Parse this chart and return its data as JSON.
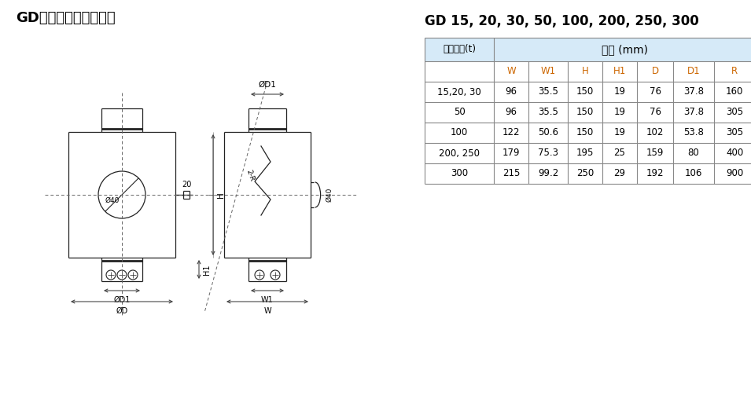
{
  "title": "GD称重传感器安装尺寸",
  "table_title": "GD 15, 20, 30, 50, 100, 200, 250, 300",
  "col_header_left": "额定容量(t)",
  "col_header_right": "尺寸 (mm)",
  "sub_headers": [
    "W",
    "W1",
    "H",
    "H1",
    "D",
    "D1",
    "R"
  ],
  "rows": [
    [
      "15,20, 30",
      "96",
      "35.5",
      "150",
      "19",
      "76",
      "37.8",
      "160"
    ],
    [
      "50",
      "96",
      "35.5",
      "150",
      "19",
      "76",
      "37.8",
      "305"
    ],
    [
      "100",
      "122",
      "50.6",
      "150",
      "19",
      "102",
      "53.8",
      "305"
    ],
    [
      "200, 250",
      "179",
      "75.3",
      "195",
      "25",
      "159",
      "80",
      "400"
    ],
    [
      "300",
      "215",
      "99.2",
      "250",
      "29",
      "192",
      "106",
      "900"
    ]
  ],
  "bg_color": "#ffffff",
  "header_bg": "#d6eaf8",
  "table_border": "#888888",
  "text_color": "#000000",
  "orange_text": "#cc6600",
  "dim_line_color": "#444444",
  "body_line_color": "#222222"
}
